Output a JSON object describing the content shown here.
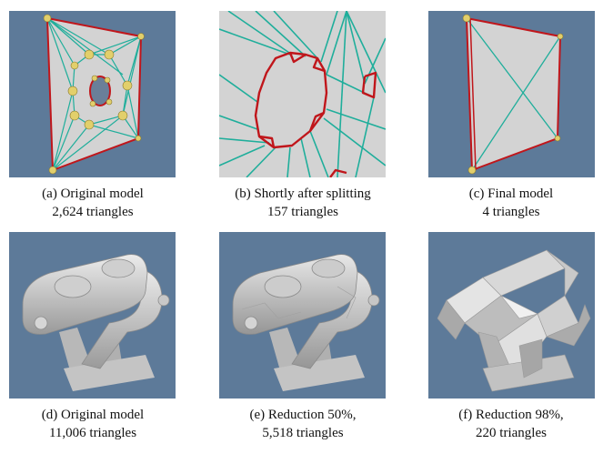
{
  "colors": {
    "background": "#5d7a99",
    "plate": "#d3d3d3",
    "edge": "#1fae9b",
    "boundary": "#c0161b",
    "vertex": "#e2cf6b",
    "metal": "#bdbdbd"
  },
  "figure": {
    "panels": [
      {
        "caption_line1": "(a) Original model",
        "caption_line2": "2,624 triangles"
      },
      {
        "caption_line1": "(b) Shortly after splitting",
        "caption_line2": "157 triangles"
      },
      {
        "caption_line1": "(c) Final model",
        "caption_line2": "4 triangles"
      },
      {
        "caption_line1": "(d) Original model",
        "caption_line2": "11,006 triangles"
      },
      {
        "caption_line1": "(e) Reduction 50%,",
        "caption_line2": "5,518 triangles"
      },
      {
        "caption_line1": "(f) Reduction 98%,",
        "caption_line2": "220 triangles"
      }
    ]
  }
}
